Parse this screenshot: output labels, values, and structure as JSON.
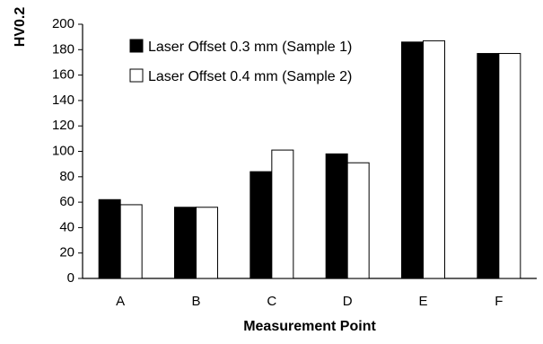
{
  "chart_data": {
    "type": "bar",
    "title": "",
    "xlabel": "Measurement Point",
    "ylabel": "HV0.2",
    "categories": [
      "A",
      "B",
      "C",
      "D",
      "E",
      "F"
    ],
    "series": [
      {
        "name": "Laser Offset 0.3 mm (Sample 1)",
        "color": "#000000",
        "values": [
          62,
          56,
          84,
          98,
          186,
          177
        ]
      },
      {
        "name": "Laser Offset 0.4 mm (Sample 2)",
        "color": "#ffffff",
        "values": [
          58,
          56,
          101,
          91,
          187,
          177
        ]
      }
    ],
    "ylim": [
      0,
      200
    ],
    "yticks": [
      0,
      20,
      40,
      60,
      80,
      100,
      120,
      140,
      160,
      180,
      200
    ],
    "grid": false,
    "legend_position": "top-left"
  }
}
